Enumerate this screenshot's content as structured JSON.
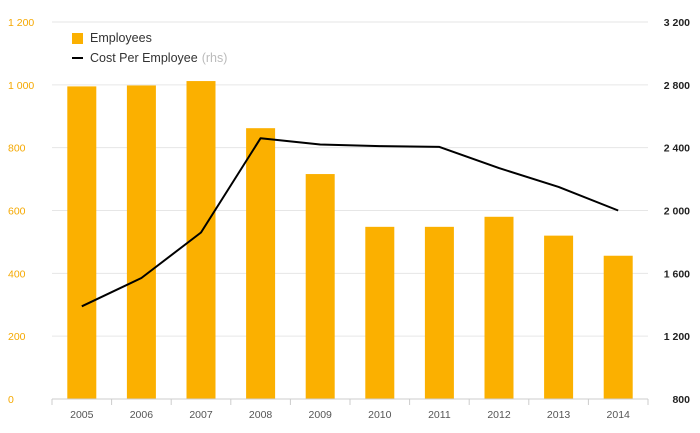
{
  "colors": {
    "bar": "#FBB000",
    "line": "#000000",
    "grid": "#e6e6e6",
    "left_axis_text": "#F5A800",
    "right_axis_text": "#222222",
    "x_axis_text": "#555555"
  },
  "legend": {
    "employees_label": "Employees",
    "cost_label": "Cost Per Employee",
    "cost_note": "(rhs)"
  },
  "chart_data": {
    "type": "bar",
    "categories": [
      "2005",
      "2006",
      "2007",
      "2008",
      "2009",
      "2010",
      "2011",
      "2012",
      "2013",
      "2014"
    ],
    "series": [
      {
        "name": "Employees",
        "type": "bar",
        "axis": "left",
        "values": [
          995,
          998,
          1012,
          862,
          716,
          548,
          548,
          580,
          520,
          456
        ]
      },
      {
        "name": "Cost Per Employee",
        "type": "line",
        "axis": "right",
        "values": [
          1390,
          1570,
          1860,
          2460,
          2420,
          2410,
          2405,
          2270,
          2150,
          2000
        ]
      }
    ],
    "y_left": {
      "range": [
        0,
        1200
      ],
      "ticks": [
        0,
        200,
        400,
        600,
        800,
        1000,
        1200
      ],
      "tick_labels": [
        "0",
        "200",
        "400",
        "600",
        "800",
        "1 000",
        "1 200"
      ]
    },
    "y_right": {
      "range": [
        800,
        3200
      ],
      "ticks": [
        800,
        1200,
        1600,
        2000,
        2400,
        2800,
        3200
      ],
      "tick_labels": [
        "800",
        "1 200",
        "1 600",
        "2 000",
        "2 400",
        "2 800",
        "3 200"
      ]
    },
    "grid": true,
    "legend_position": "top-left"
  }
}
